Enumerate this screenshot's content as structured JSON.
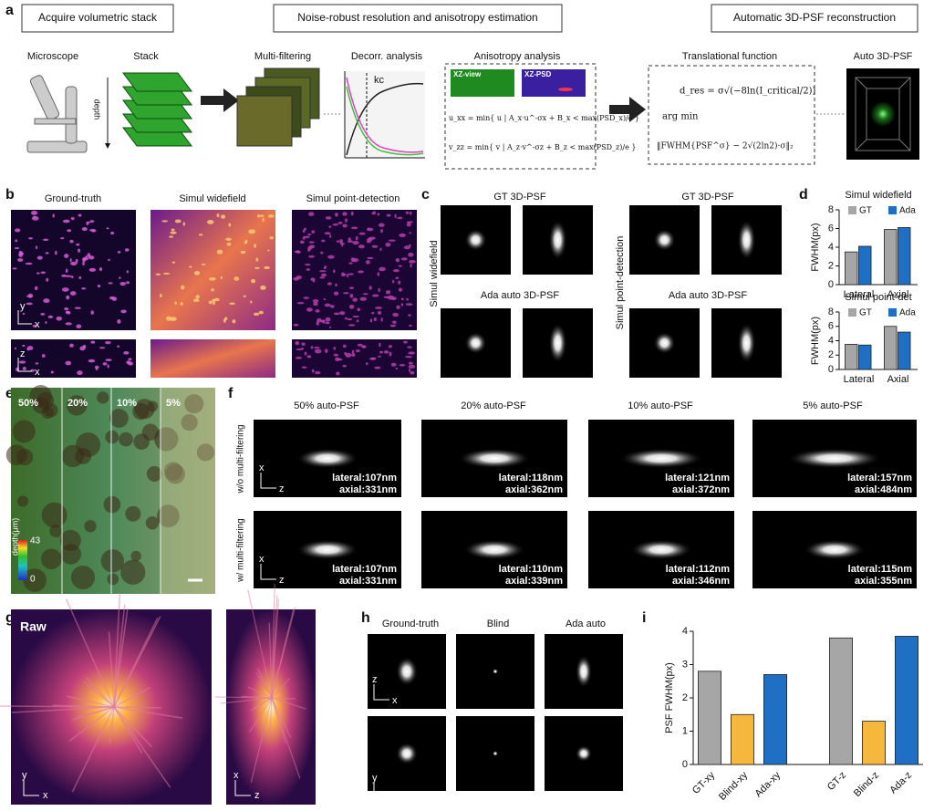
{
  "panel_labels": [
    "a",
    "b",
    "c",
    "d",
    "e",
    "f",
    "g",
    "h",
    "i"
  ],
  "a": {
    "headers": [
      "Acquire volumetric stack",
      "Noise-robust resolution and anisotropy estimation",
      "Automatic 3D-PSF reconstruction"
    ],
    "steps": [
      "Microscope",
      "Stack",
      "Multi-filtering",
      "Decorr. analysis",
      "Anisotropy analysis",
      "Translational function",
      "Auto 3D-PSF"
    ],
    "depth": "depth",
    "kc": "kc",
    "views": [
      "XZ-view",
      "XZ-PSD"
    ],
    "equations": [
      "u_xx = min{ u | A_x·u^-σx + B_x < max(PSD_x)/e }",
      "v_zz = min{ v | A_z·v^-σz + B_z < max(PSD_z)/e }",
      "d_res = σ√(−8ln(I_critical/2))",
      "arg min",
      "‖FWHM{PSF^σ} − 2√(2ln2)·σ‖₂"
    ]
  },
  "b": {
    "titles": [
      "Ground-truth",
      "Simul widefield",
      "Simul point-detection"
    ],
    "axes": [
      "y",
      "x",
      "z",
      "x"
    ]
  },
  "c": {
    "titles": [
      "GT 3D-PSF",
      "GT 3D-PSF",
      "Ada auto 3D-PSF",
      "Ada auto 3D-PSF"
    ],
    "rows": [
      "Simul widefield",
      "Simul point-detection"
    ]
  },
  "e": {
    "levels": [
      "50%",
      "20%",
      "10%",
      "5%"
    ],
    "colorbar_title": "depth(μm)",
    "colorbar_max": 43,
    "colorbar_min": 0
  },
  "f": {
    "titles": [
      "50% auto-PSF",
      "20% auto-PSF",
      "10% auto-PSF",
      "5% auto-PSF"
    ],
    "rows": [
      "w/o multi-filtering",
      "w/ multi-filtering"
    ],
    "axes": [
      "x",
      "z"
    ],
    "measurements": [
      [
        [
          "lateral:107nm",
          "axial:331nm"
        ],
        [
          "lateral:118nm",
          "axial:362nm"
        ],
        [
          "lateral:121nm",
          "axial:372nm"
        ],
        [
          "lateral:157nm",
          "axial:484nm"
        ]
      ],
      [
        [
          "lateral:107nm",
          "axial:331nm"
        ],
        [
          "lateral:110nm",
          "axial:339nm"
        ],
        [
          "lateral:112nm",
          "axial:346nm"
        ],
        [
          "lateral:115nm",
          "axial:355nm"
        ]
      ]
    ]
  },
  "g": {
    "title": "Raw",
    "axes": [
      "y",
      "x",
      "x",
      "z"
    ]
  },
  "h": {
    "titles": [
      "Ground-truth",
      "Blind",
      "Ada auto"
    ],
    "axes": [
      "z",
      "x",
      "y",
      "x"
    ]
  },
  "chart_data": [
    {
      "type": "bar",
      "title": "Simul widefield",
      "y_label": "FWHM(px)",
      "categories": [
        "Lateral",
        "Axial"
      ],
      "series": [
        {
          "name": "GT",
          "color": "#a6a6a6",
          "values": [
            3.5,
            5.9
          ]
        },
        {
          "name": "Ada",
          "color": "#1f6fc4",
          "values": [
            4.1,
            6.1
          ]
        }
      ],
      "ylim": [
        0,
        8
      ],
      "yticks": [
        0,
        2,
        4,
        6,
        8
      ],
      "legend": "top"
    },
    {
      "type": "bar",
      "title": "Simul point-det",
      "y_label": "FWHM(px)",
      "categories": [
        "Lateral",
        "Axial"
      ],
      "series": [
        {
          "name": "GT",
          "color": "#a6a6a6",
          "values": [
            3.5,
            6.0
          ]
        },
        {
          "name": "Ada",
          "color": "#1f6fc4",
          "values": [
            3.4,
            5.2
          ]
        }
      ],
      "ylim": [
        0,
        8
      ],
      "yticks": [
        0,
        2,
        4,
        6,
        8
      ],
      "legend": "top"
    },
    {
      "type": "bar",
      "y_label": "PSF FWHM(px)",
      "categories": [
        "GT-xy",
        "Blind-xy",
        "Ada-xy",
        "GT-z",
        "Blind-z",
        "Ada-z"
      ],
      "values": [
        2.8,
        1.5,
        2.7,
        3.8,
        1.3,
        3.85
      ],
      "colors": [
        "#a6a6a6",
        "#f5b83d",
        "#1f6fc4",
        "#a6a6a6",
        "#f5b83d",
        "#1f6fc4"
      ],
      "ylim": [
        0,
        4
      ],
      "yticks": [
        0,
        1,
        2,
        3,
        4
      ]
    }
  ]
}
